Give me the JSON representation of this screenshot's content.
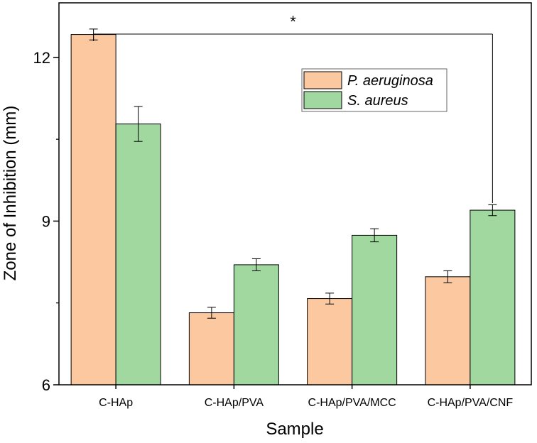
{
  "chart_data": {
    "type": "bar",
    "title": "",
    "xlabel": "Sample",
    "ylabel": "Zone of Inhibition (mm)",
    "ylim": [
      6,
      13
    ],
    "yticks": [
      6,
      9,
      12
    ],
    "categories": [
      "C-HAp",
      "C-HAp/PVA",
      "C-HAp/PVA/MCC",
      "C-HAp/PVA/CNF"
    ],
    "series": [
      {
        "name": "P. aeruginosa",
        "color": "#FCC8A0",
        "values": [
          12.42,
          7.32,
          7.58,
          7.98
        ],
        "errors": [
          0.1,
          0.1,
          0.1,
          0.11
        ]
      },
      {
        "name": "S. aureus",
        "color": "#A0D8A0",
        "values": [
          10.78,
          8.2,
          8.74,
          9.2
        ],
        "errors": [
          0.32,
          0.11,
          0.12,
          0.1
        ]
      }
    ],
    "significance": {
      "label": "*",
      "from_category": 0,
      "to_category": 3
    },
    "legend_position": "top-right",
    "grid": false
  }
}
